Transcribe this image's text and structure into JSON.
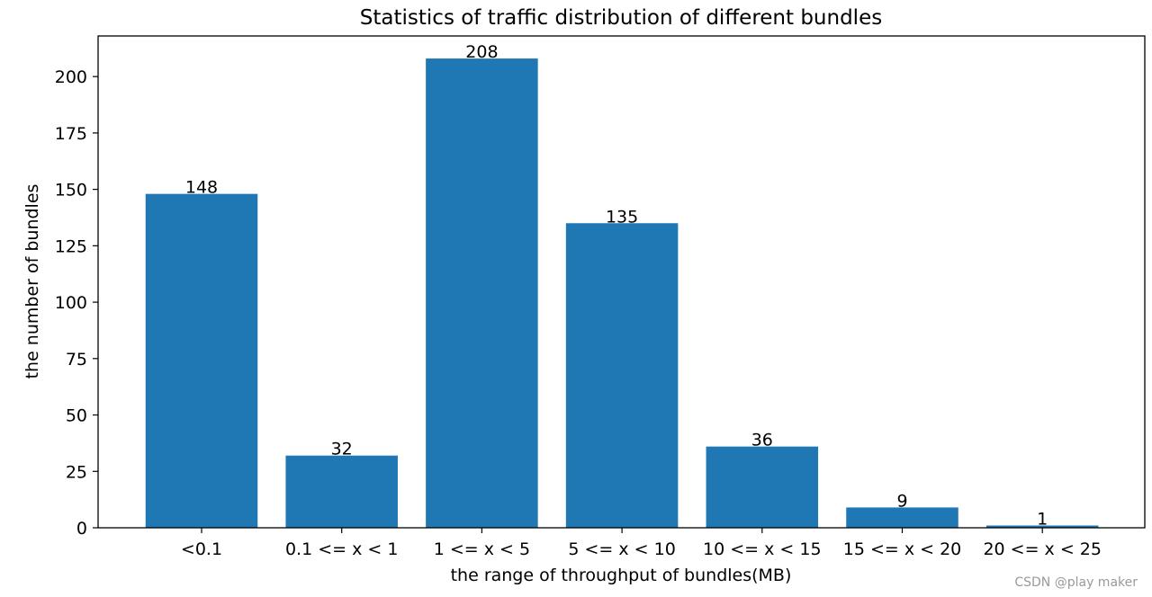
{
  "chart_data": {
    "type": "bar",
    "title": "Statistics of traffic distribution of different bundles",
    "xlabel": "the range of throughput of bundles(MB)",
    "ylabel": "the number of bundles",
    "categories": [
      "<0.1",
      "0.1 <= x < 1",
      "1 <= x < 5",
      "5 <= x < 10",
      "10 <= x < 15",
      "15 <= x < 20",
      "20 <= x < 25"
    ],
    "values": [
      148,
      32,
      208,
      135,
      36,
      9,
      1
    ],
    "data_labels": [
      "148",
      "32",
      "208",
      "135",
      "36",
      "9",
      "1"
    ],
    "ylim": [
      0,
      218
    ],
    "yticks": [
      0,
      25,
      50,
      75,
      100,
      125,
      150,
      175,
      200
    ],
    "bar_color": "#1f77b4",
    "grid": false,
    "legend": "none"
  },
  "watermark": "CSDN @play maker"
}
